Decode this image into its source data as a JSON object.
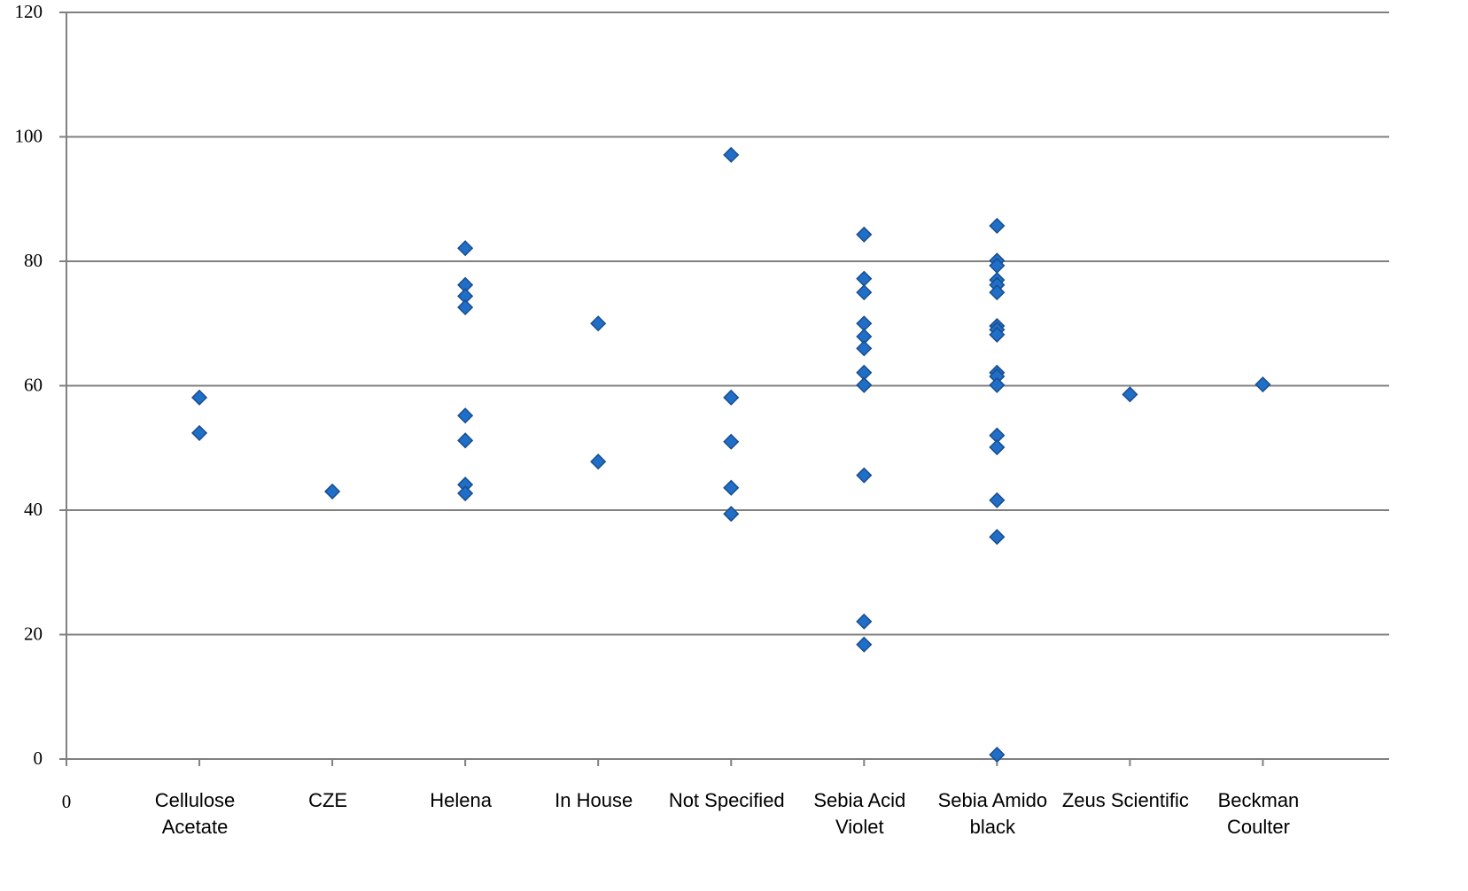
{
  "chart_data": {
    "type": "scatter",
    "x": [
      1,
      1,
      2,
      3,
      3,
      3,
      3,
      3,
      3,
      3,
      3,
      4,
      4,
      5,
      5,
      5,
      5,
      5,
      6,
      6,
      6,
      6,
      6,
      6,
      6,
      6,
      6,
      6,
      6,
      7,
      7,
      7,
      7,
      7,
      7,
      7,
      7,
      7,
      7,
      7,
      7,
      7,
      7,
      7,
      7,
      7,
      8,
      9
    ],
    "values": [
      58.1,
      52.4,
      43.0,
      82.1,
      76.2,
      74.4,
      72.6,
      55.2,
      51.2,
      44.1,
      42.7,
      70.0,
      47.8,
      97.1,
      58.1,
      51.0,
      43.6,
      39.4,
      84.3,
      77.2,
      75.0,
      70.0,
      67.9,
      66.0,
      62.1,
      60.1,
      45.6,
      22.1,
      18.4,
      85.7,
      80.1,
      79.3,
      77.0,
      76.2,
      75.0,
      69.6,
      69.0,
      68.2,
      62.1,
      61.5,
      60.1,
      52.0,
      50.1,
      41.6,
      35.7,
      0.7,
      58.6,
      60.2
    ],
    "color": "#1f6fc8",
    "xlim": [
      0,
      9.95
    ],
    "xticks": [
      0,
      {
        "value": 1,
        "label": "Cellulose Acetate"
      },
      {
        "value": 2,
        "label": "CZE"
      },
      {
        "value": 3,
        "label": "Helena"
      },
      {
        "value": 4,
        "label": "In House"
      },
      {
        "value": 5,
        "label": "Not Specified"
      },
      {
        "value": 6,
        "label": "Sebia Acid Violet"
      },
      {
        "value": 7,
        "label": "Sebia Amido black"
      },
      {
        "value": 8,
        "label": "Zeus Scientific"
      },
      {
        "value": 9,
        "label": "Beckman Coulter"
      }
    ],
    "ylim": [
      0,
      120
    ],
    "yticks": [
      0,
      20,
      40,
      60,
      80,
      100,
      120
    ],
    "grid": true
  }
}
